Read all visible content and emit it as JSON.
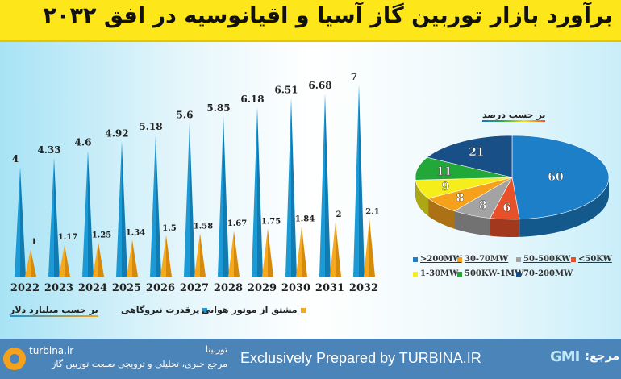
{
  "header": {
    "title": "برآورد بازار توربین گاز آسیا و اقیانوسیه در افق ۲۰۳۲"
  },
  "chart_data": [
    {
      "type": "bar",
      "mark": "cone",
      "categories": [
        "2022",
        "2023",
        "2024",
        "2025",
        "2026",
        "2027",
        "2028",
        "2029",
        "2030",
        "2031",
        "2032"
      ],
      "series": [
        {
          "name": "پرقدرت نیروگاهی",
          "color": "#1c9ad6",
          "values": [
            4,
            4.33,
            4.6,
            4.92,
            5.18,
            5.6,
            5.85,
            6.18,
            6.51,
            6.68,
            7
          ],
          "labels": [
            "4",
            "4.33",
            "4.6",
            "4.92",
            "5.18",
            "5.6",
            "5.85",
            "6.18",
            "6.51",
            "6.68",
            "7"
          ]
        },
        {
          "name": "مشتق از موتور هوایی",
          "color": "#f5a91c",
          "values": [
            1,
            1.17,
            1.25,
            1.34,
            1.5,
            1.58,
            1.67,
            1.75,
            1.84,
            2,
            2.1
          ],
          "labels": [
            "1",
            "1.17",
            "1.25",
            "1.34",
            "1.5",
            "1.58",
            "1.67",
            "1.75",
            "1.84",
            "2",
            "2.1"
          ]
        }
      ],
      "unit_label": "بر حسب میلیارد دلار",
      "ylim": [
        0,
        7
      ],
      "grid": false,
      "legend": "bottom"
    },
    {
      "type": "pie",
      "title": "بر حسب درصد",
      "slices": [
        {
          "label": ">200MW",
          "value": 60,
          "color": "#1c7fc8"
        },
        {
          "label": "<50KW",
          "value": 6,
          "color": "#e8502a"
        },
        {
          "label": "50-500KW",
          "value": 8,
          "color": "#a3a3a3"
        },
        {
          "label": "30-70MW",
          "value": 8,
          "color": "#f5a11c"
        },
        {
          "label": "1-30MW",
          "value": 9,
          "color": "#f6ee1a"
        },
        {
          "label": "500KW-1MW",
          "value": 11,
          "color": "#22a838"
        },
        {
          "label": "70-200MW",
          "value": 21,
          "color": "#174f86"
        }
      ],
      "legend_order": [
        ">200MW",
        "30-70MW",
        "50-500KW",
        "<50KW",
        "1-30MW",
        "500KW-1MW",
        "70-200MW"
      ],
      "legend": "bottom"
    }
  ],
  "footer": {
    "tagline": "Exclusively Prepared by TURBINA.IR",
    "brand_en": "turbina.ir",
    "brand_fa": "توربینا",
    "brand_desc": "مرجع خبری، تحلیلی و ترویجی صنعت توربین گاز",
    "source_label": "مرجع:",
    "source_logo": "GMI"
  }
}
